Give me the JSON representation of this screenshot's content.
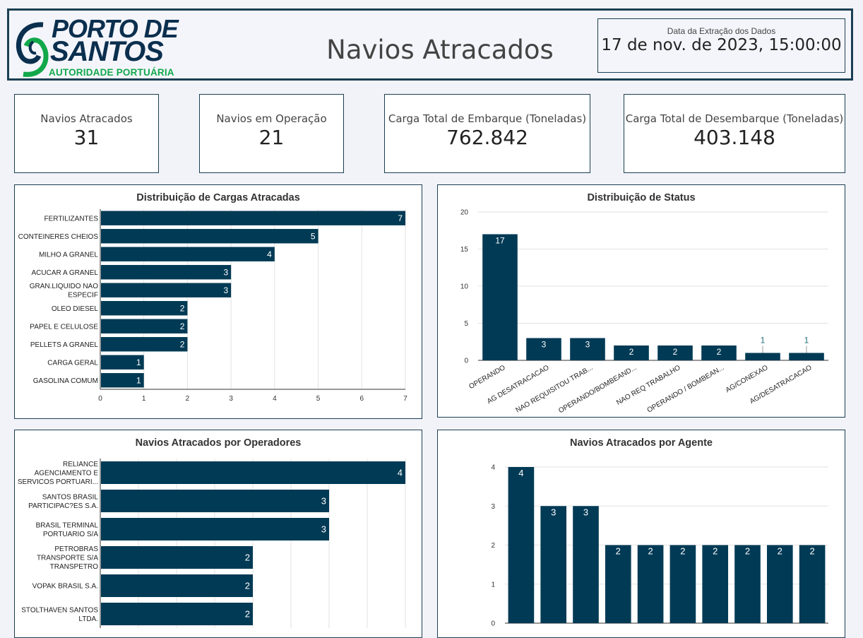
{
  "header": {
    "logo": {
      "line1": "PORTO DE",
      "line2": "SANTOS",
      "line3": "AUTORIDADE PORTUÁRIA"
    },
    "title": "Navios Atracados",
    "date_label": "Data da Extração dos Dados",
    "date_value": "17 de nov. de 2023, 15:00:00"
  },
  "kpis": [
    {
      "label": "Navios Atracados",
      "value": "31"
    },
    {
      "label": "Navios em Operação",
      "value": "21"
    },
    {
      "label": "Carga Total de Embarque (Toneladas)",
      "value": "762.842"
    },
    {
      "label": "Carga Total de Desembarque (Toneladas)",
      "value": "403.148"
    }
  ],
  "colors": {
    "bar": "#003a55",
    "frame": "#1b3f52",
    "grid": "#e2e2e2"
  },
  "chart_data": [
    {
      "type": "bar",
      "orientation": "horizontal",
      "title": "Distribuição de Cargas Atracadas",
      "categories": [
        "FERTILIZANTES",
        "CONTEINERES CHEIOS",
        "MILHO A GRANEL",
        "ACUCAR A GRANEL",
        "GRAN.LIQUIDO NAO ESPECIF",
        "OLEO DIESEL",
        "PAPEL E CELULOSE",
        "PELLETS A GRANEL",
        "CARGA GERAL",
        "GASOLINA COMUM"
      ],
      "category_label_lines": [
        [
          "FERTILIZANTES"
        ],
        [
          "CONTEINERES CHEIOS"
        ],
        [
          "MILHO A GRANEL"
        ],
        [
          "ACUCAR A GRANEL"
        ],
        [
          "GRAN.LIQUIDO NAO",
          "ESPECIF"
        ],
        [
          "OLEO DIESEL"
        ],
        [
          "PAPEL E CELULOSE"
        ],
        [
          "PELLETS A GRANEL"
        ],
        [
          "CARGA GERAL"
        ],
        [
          "GASOLINA COMUM"
        ]
      ],
      "values": [
        7,
        5,
        4,
        3,
        3,
        2,
        2,
        2,
        1,
        1
      ],
      "xlim": [
        0,
        7
      ],
      "ticks": [
        0,
        1,
        2,
        3,
        4,
        5,
        6,
        7
      ],
      "grid": true
    },
    {
      "type": "bar",
      "orientation": "vertical",
      "title": "Distribuição de Status",
      "categories": [
        "OPERANDO",
        "AG DESATRACACAO",
        "NAO REQUISITOU TRAB...",
        "OPERANDO/BOMBEAND...",
        "NAO REQ TRABALHO",
        "OPERANDO / BOMBEAN...",
        "AG/CONEXAO",
        "AG/DESATRACACAO"
      ],
      "values": [
        17,
        3,
        3,
        2,
        2,
        2,
        1,
        1
      ],
      "ylim": [
        0,
        20
      ],
      "ticks": [
        0,
        5,
        10,
        15,
        20
      ],
      "grid": true
    },
    {
      "type": "bar",
      "orientation": "horizontal",
      "title": "Navios Atracados por Operadores",
      "categories": [
        "RELIANCE AGENCIAMENTO E SERVICOS PORTUARI...",
        "SANTOS BRASIL PARTICIPAC?ES S.A.",
        "BRASIL TERMINAL PORTUARIO S/A",
        "PETROBRAS TRANSPORTE S/A TRANSPETRO",
        "VOPAK BRASIL S.A.",
        "STOLTHAVEN SANTOS LTDA."
      ],
      "category_label_lines": [
        [
          "RELIANCE",
          "AGENCIAMENTO E",
          "SERVICOS PORTUARI..."
        ],
        [
          "SANTOS BRASIL",
          "PARTICIPAC?ES S.A."
        ],
        [
          "BRASIL TERMINAL",
          "PORTUARIO S/A"
        ],
        [
          "PETROBRAS",
          "TRANSPORTE S/A",
          "TRANSPETRO"
        ],
        [
          "VOPAK BRASIL S.A."
        ],
        [
          "STOLTHAVEN SANTOS",
          "LTDA."
        ]
      ],
      "values": [
        4,
        3,
        3,
        2,
        2,
        2
      ],
      "xlim": [
        0,
        4
      ],
      "grid": true
    },
    {
      "type": "bar",
      "orientation": "vertical",
      "title": "Navios Atracados por Agente",
      "values": [
        4,
        3,
        3,
        2,
        2,
        2,
        2,
        2,
        2,
        2
      ],
      "ylim": [
        0,
        4
      ],
      "ticks": [
        0,
        1,
        2,
        3,
        4
      ],
      "grid": true
    }
  ]
}
